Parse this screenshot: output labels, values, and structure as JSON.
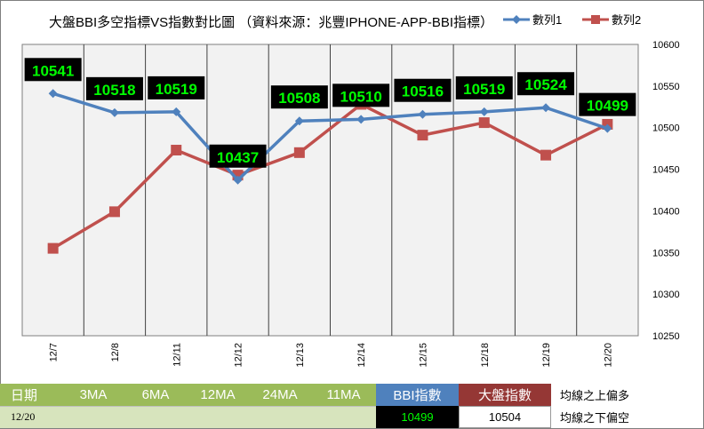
{
  "chart_data": {
    "type": "line",
    "title": "大盤BBI多空指標VS指數對比圖 （資料來源：兆豐IPHONE-APP-BBI指標）",
    "categories": [
      "12/7",
      "12/8",
      "12/11",
      "12/12",
      "12/13",
      "12/14",
      "12/15",
      "12/18",
      "12/19",
      "12/20"
    ],
    "series": [
      {
        "name": "數列1",
        "color": "#4f81bd",
        "marker": "diamond",
        "values": [
          10541,
          10518,
          10519,
          10437,
          10508,
          10510,
          10516,
          10519,
          10524,
          10499
        ]
      },
      {
        "name": "數列2",
        "color": "#c0504d",
        "marker": "square",
        "values": [
          10355,
          10399,
          10473,
          10443,
          10470,
          10528,
          10491,
          10506,
          10467,
          10504
        ]
      }
    ],
    "data_labels": [
      "10541",
      "10518",
      "10519",
      "10437",
      "10508",
      "10510",
      "10516",
      "10519",
      "10524",
      "10499"
    ],
    "ylim": [
      10250,
      10600
    ],
    "yticks": [
      10250,
      10300,
      10350,
      10400,
      10450,
      10500,
      10550,
      10600
    ],
    "ytick_labels": [
      "10250",
      "10300",
      "10350",
      "10400",
      "10450",
      "10500",
      "10550",
      "10600"
    ],
    "legend_position": "top-right",
    "grid": "vertical"
  },
  "table": {
    "headers": [
      "日期",
      "3MA",
      "6MA",
      "12MA",
      "24MA",
      "11MA",
      "BBI指數",
      "大盤指數"
    ],
    "row": [
      "12/20",
      "",
      "",
      "",
      "",
      "",
      "10499",
      "10504"
    ],
    "notes": [
      "均線之上偏多",
      "均線之下偏空"
    ]
  },
  "colors": {
    "header_green": "#9bbb59",
    "row_green": "#d7e4bd",
    "bbi_blue": "#4f81bd",
    "index_red": "#953735",
    "label_bg": "#000000",
    "label_text": "#00ff00",
    "plot_bg": "#f2f2f2"
  }
}
